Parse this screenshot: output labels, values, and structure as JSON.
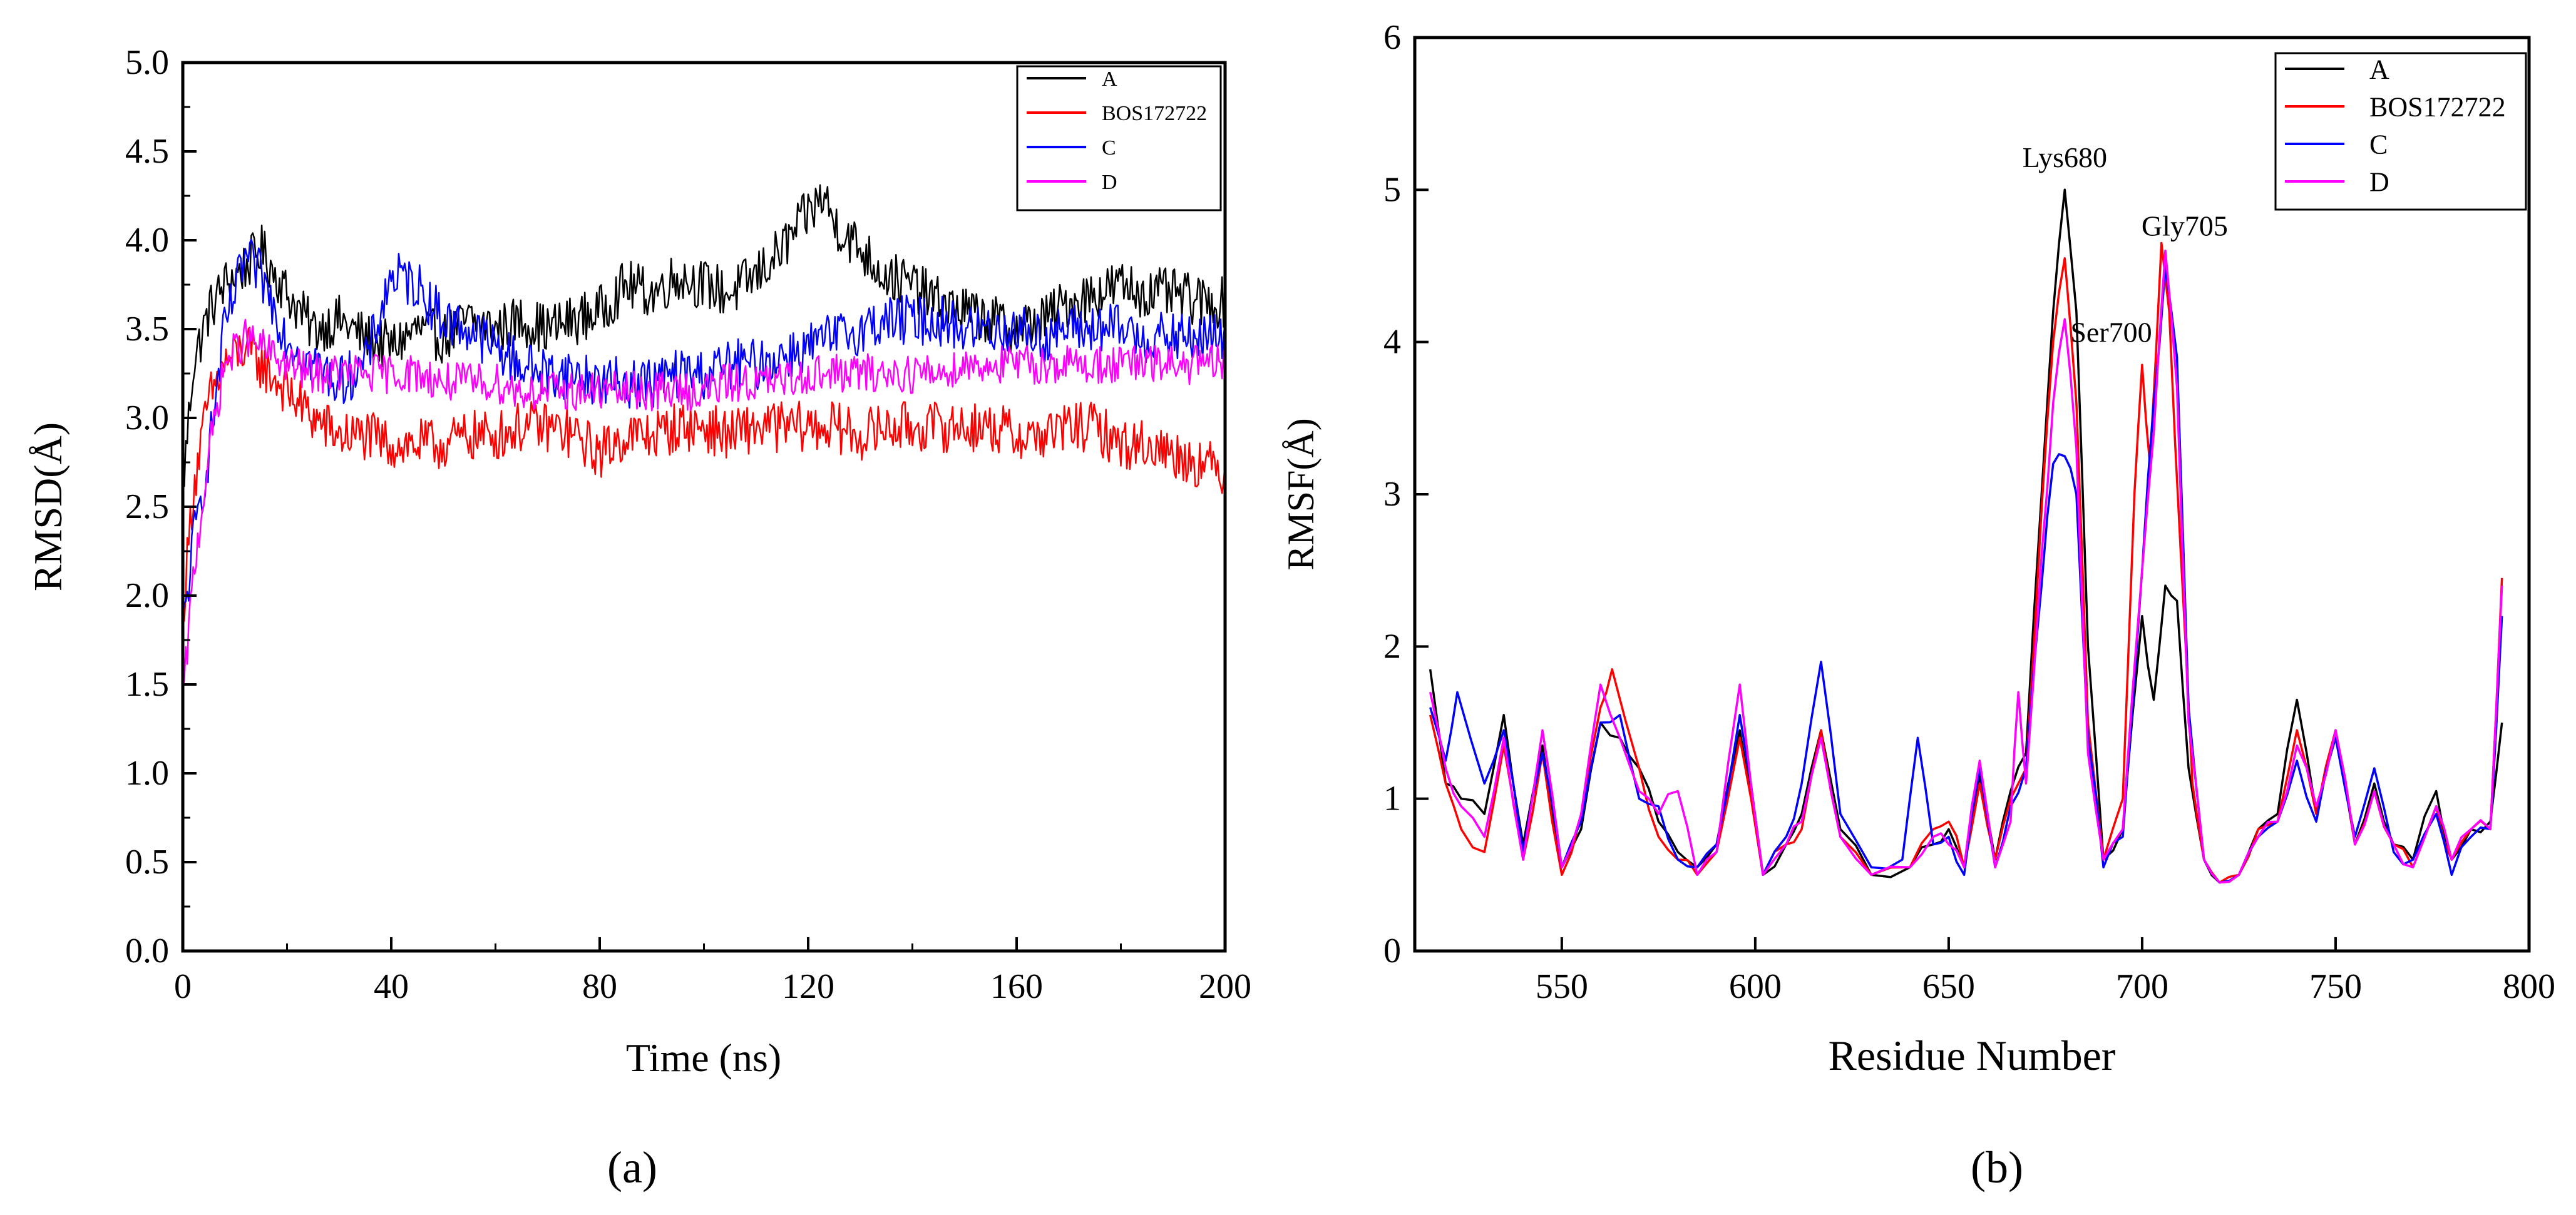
{
  "chart_data": [
    {
      "type": "line",
      "panel_label": "(a)",
      "xlabel": "Time (ns)",
      "ylabel": "RMSD(Å)",
      "xlim": [
        0,
        200
      ],
      "ylim": [
        0,
        5
      ],
      "xticks": [
        {
          "value": 0,
          "label": "0"
        },
        {
          "value": 40,
          "label": "40"
        },
        {
          "value": 80,
          "label": "80"
        },
        {
          "value": 120,
          "label": "120"
        },
        {
          "value": 160,
          "label": "160"
        },
        {
          "value": 200,
          "label": "200"
        }
      ],
      "yticks": [
        {
          "value": 0.0,
          "label": "0.0"
        },
        {
          "value": 0.5,
          "label": "0.5"
        },
        {
          "value": 1.0,
          "label": "1.0"
        },
        {
          "value": 1.5,
          "label": "1.5"
        },
        {
          "value": 2.0,
          "label": "2.0"
        },
        {
          "value": 2.5,
          "label": "2.5"
        },
        {
          "value": 3.0,
          "label": "3.0"
        },
        {
          "value": 3.5,
          "label": "3.5"
        },
        {
          "value": 4.0,
          "label": "4.0"
        },
        {
          "value": 4.5,
          "label": "4.5"
        },
        {
          "value": 5.0,
          "label": "5.0"
        }
      ],
      "legend_position": "top-right",
      "series": [
        {
          "name": "A",
          "color": "#000000",
          "noise": 0.09,
          "x": [
            0,
            2,
            5,
            8,
            12,
            15,
            20,
            25,
            30,
            35,
            40,
            45,
            50,
            55,
            60,
            65,
            70,
            75,
            80,
            85,
            90,
            95,
            100,
            105,
            110,
            115,
            120,
            123,
            125,
            130,
            135,
            140,
            145,
            150,
            155,
            160,
            165,
            170,
            175,
            180,
            185,
            190,
            195,
            200
          ],
          "y": [
            2.6,
            3.3,
            3.6,
            3.75,
            3.85,
            3.95,
            3.7,
            3.5,
            3.55,
            3.45,
            3.4,
            3.5,
            3.45,
            3.55,
            3.5,
            3.55,
            3.5,
            3.55,
            3.6,
            3.75,
            3.7,
            3.8,
            3.75,
            3.7,
            3.8,
            3.95,
            4.15,
            4.25,
            4.1,
            3.95,
            3.8,
            3.75,
            3.65,
            3.6,
            3.55,
            3.5,
            3.55,
            3.65,
            3.7,
            3.75,
            3.7,
            3.7,
            3.65,
            3.65
          ]
        },
        {
          "name": "BOS172722",
          "color": "#ff0000",
          "noise": 0.09,
          "x": [
            0,
            2,
            5,
            8,
            12,
            15,
            20,
            25,
            30,
            35,
            40,
            45,
            50,
            55,
            60,
            65,
            70,
            75,
            80,
            85,
            90,
            95,
            100,
            105,
            110,
            115,
            120,
            125,
            130,
            135,
            140,
            145,
            150,
            155,
            160,
            165,
            170,
            175,
            180,
            185,
            190,
            195,
            200
          ],
          "y": [
            1.9,
            2.6,
            3.1,
            3.3,
            3.4,
            3.3,
            3.15,
            3.0,
            2.9,
            2.9,
            2.85,
            2.85,
            2.85,
            2.9,
            2.9,
            2.95,
            2.95,
            2.9,
            2.8,
            2.9,
            2.9,
            2.95,
            2.95,
            2.9,
            2.95,
            2.95,
            2.95,
            2.95,
            2.9,
            2.95,
            2.95,
            2.95,
            2.95,
            2.95,
            2.9,
            2.9,
            2.95,
            2.95,
            2.85,
            2.85,
            2.8,
            2.75,
            2.7
          ]
        },
        {
          "name": "C",
          "color": "#0000ff",
          "noise": 0.09,
          "x": [
            0,
            2,
            5,
            8,
            12,
            15,
            20,
            25,
            30,
            35,
            40,
            45,
            50,
            55,
            60,
            65,
            70,
            75,
            80,
            85,
            90,
            95,
            100,
            105,
            110,
            115,
            120,
            125,
            130,
            135,
            140,
            145,
            150,
            155,
            160,
            165,
            170,
            175,
            180,
            185,
            190,
            195,
            200
          ],
          "y": [
            1.8,
            2.3,
            2.8,
            3.5,
            3.9,
            3.8,
            3.45,
            3.3,
            3.2,
            3.3,
            3.8,
            3.75,
            3.55,
            3.5,
            3.4,
            3.3,
            3.25,
            3.25,
            3.2,
            3.2,
            3.2,
            3.25,
            3.25,
            3.3,
            3.3,
            3.35,
            3.4,
            3.45,
            3.5,
            3.55,
            3.55,
            3.55,
            3.5,
            3.5,
            3.5,
            3.45,
            3.5,
            3.5,
            3.5,
            3.45,
            3.45,
            3.45,
            3.45
          ]
        },
        {
          "name": "D",
          "color": "#ff00ff",
          "noise": 0.07,
          "x": [
            0,
            2,
            5,
            8,
            12,
            15,
            20,
            25,
            30,
            35,
            40,
            45,
            50,
            55,
            60,
            65,
            70,
            75,
            80,
            85,
            90,
            95,
            100,
            105,
            110,
            115,
            120,
            125,
            130,
            135,
            140,
            145,
            150,
            155,
            160,
            165,
            170,
            175,
            180,
            185,
            190,
            195,
            200
          ],
          "y": [
            1.4,
            2.1,
            2.8,
            3.3,
            3.45,
            3.4,
            3.3,
            3.25,
            3.25,
            3.25,
            3.25,
            3.25,
            3.2,
            3.2,
            3.2,
            3.15,
            3.15,
            3.15,
            3.15,
            3.15,
            3.15,
            3.15,
            3.15,
            3.2,
            3.2,
            3.2,
            3.25,
            3.25,
            3.25,
            3.25,
            3.25,
            3.25,
            3.3,
            3.3,
            3.3,
            3.3,
            3.3,
            3.3,
            3.3,
            3.3,
            3.3,
            3.3,
            3.3
          ]
        }
      ]
    },
    {
      "type": "line",
      "panel_label": "(b)",
      "xlabel": "Residue Number",
      "ylabel": "RMSF(Å)",
      "xlim": [
        512,
        800
      ],
      "ylim": [
        0,
        6
      ],
      "xticks": [
        {
          "value": 550,
          "label": "550"
        },
        {
          "value": 600,
          "label": "600"
        },
        {
          "value": 650,
          "label": "650"
        },
        {
          "value": 700,
          "label": "700"
        },
        {
          "value": 750,
          "label": "750"
        },
        {
          "value": 800,
          "label": "800"
        }
      ],
      "yticks": [
        {
          "value": 0,
          "label": "0"
        },
        {
          "value": 1,
          "label": "1"
        },
        {
          "value": 2,
          "label": "2"
        },
        {
          "value": 3,
          "label": "3"
        },
        {
          "value": 4,
          "label": "4"
        },
        {
          "value": 5,
          "label": "5"
        },
        {
          "value": 6,
          "label": "6"
        }
      ],
      "legend_position": "top-right",
      "annotations": [
        {
          "text": "Lys680",
          "x": 680,
          "y": 5.15
        },
        {
          "text": "Ser700",
          "x": 692,
          "y": 4.0
        },
        {
          "text": "Gly705",
          "x": 711,
          "y": 4.7
        }
      ],
      "series": [
        {
          "name": "A",
          "color": "#000000",
          "x": [
            516,
            520,
            524,
            530,
            535,
            540,
            545,
            550,
            555,
            560,
            565,
            570,
            575,
            580,
            585,
            590,
            596,
            602,
            608,
            612,
            617,
            622,
            630,
            640,
            646,
            650,
            654,
            658,
            662,
            666,
            670,
            674,
            677,
            680,
            683,
            686,
            690,
            695,
            700,
            703,
            706,
            709,
            712,
            716,
            720,
            725,
            730,
            735,
            740,
            745,
            750,
            755,
            760,
            765,
            770,
            776,
            780,
            785,
            790,
            793
          ],
          "x_note": "",
          "y": [
            1.85,
            1.1,
            1.0,
            0.9,
            1.55,
            0.7,
            1.35,
            0.55,
            0.8,
            1.5,
            1.4,
            1.2,
            0.85,
            0.65,
            0.55,
            0.7,
            1.45,
            0.5,
            0.7,
            0.9,
            1.45,
            0.8,
            0.5,
            0.55,
            0.7,
            0.8,
            0.55,
            1.15,
            0.6,
            1.05,
            1.3,
            3.0,
            4.2,
            5.0,
            4.2,
            2.0,
            0.6,
            0.8,
            2.2,
            1.65,
            2.4,
            2.3,
            1.2,
            0.6,
            0.45,
            0.5,
            0.8,
            0.9,
            1.65,
            0.9,
            1.45,
            0.7,
            1.1,
            0.7,
            0.6,
            1.05,
            0.6,
            0.8,
            0.85,
            1.5
          ]
        },
        {
          "name": "BOS172722",
          "color": "#ff0000",
          "x": [
            516,
            520,
            524,
            530,
            535,
            540,
            545,
            550,
            555,
            560,
            563,
            570,
            575,
            580,
            585,
            590,
            596,
            602,
            608,
            612,
            617,
            622,
            630,
            640,
            646,
            650,
            654,
            658,
            662,
            666,
            670,
            674,
            677,
            680,
            683,
            686,
            690,
            695,
            698,
            700,
            702,
            705,
            707,
            710,
            713,
            716,
            720,
            725,
            730,
            735,
            740,
            745,
            750,
            755,
            760,
            765,
            770,
            776,
            780,
            785,
            790,
            793
          ],
          "y": [
            1.55,
            1.1,
            0.8,
            0.65,
            1.35,
            0.6,
            1.3,
            0.5,
            0.9,
            1.6,
            1.85,
            1.2,
            0.75,
            0.6,
            0.5,
            0.65,
            1.4,
            0.5,
            0.7,
            0.8,
            1.45,
            0.75,
            0.5,
            0.55,
            0.8,
            0.85,
            0.55,
            1.1,
            0.6,
            1.0,
            1.2,
            2.9,
            4.0,
            4.55,
            3.6,
            1.5,
            0.6,
            1.0,
            3.0,
            3.85,
            3.2,
            4.65,
            4.2,
            2.6,
            1.1,
            0.6,
            0.45,
            0.5,
            0.8,
            0.85,
            1.45,
            0.9,
            1.45,
            0.7,
            1.05,
            0.7,
            0.55,
            0.95,
            0.6,
            0.8,
            0.8,
            2.45
          ]
        },
        {
          "name": "C",
          "color": "#0000ff",
          "x": [
            516,
            520,
            523,
            530,
            535,
            540,
            545,
            550,
            555,
            560,
            565,
            570,
            575,
            580,
            585,
            590,
            596,
            602,
            608,
            612,
            617,
            622,
            630,
            638,
            642,
            646,
            650,
            654,
            658,
            662,
            666,
            670,
            674,
            677,
            680,
            683,
            686,
            690,
            695,
            700,
            703,
            706,
            709,
            712,
            716,
            720,
            725,
            730,
            735,
            740,
            745,
            750,
            755,
            760,
            765,
            770,
            776,
            780,
            785,
            790,
            793
          ],
          "y": [
            1.6,
            1.25,
            1.7,
            1.1,
            1.45,
            0.65,
            1.3,
            0.55,
            0.85,
            1.5,
            1.55,
            1.0,
            0.95,
            0.6,
            0.55,
            0.7,
            1.55,
            0.5,
            0.75,
            1.1,
            1.9,
            0.9,
            0.55,
            0.6,
            1.4,
            0.7,
            0.75,
            0.5,
            1.2,
            0.55,
            0.95,
            1.2,
            2.4,
            3.2,
            3.25,
            3.0,
            1.4,
            0.55,
            0.75,
            2.5,
            3.6,
            4.5,
            3.9,
            1.6,
            0.6,
            0.45,
            0.5,
            0.75,
            0.85,
            1.25,
            0.85,
            1.4,
            0.75,
            1.2,
            0.65,
            0.6,
            0.9,
            0.5,
            0.75,
            0.8,
            2.2
          ]
        },
        {
          "name": "D",
          "color": "#ff00ff",
          "x": [
            516,
            520,
            524,
            530,
            535,
            540,
            545,
            550,
            555,
            560,
            565,
            570,
            575,
            580,
            585,
            590,
            596,
            602,
            608,
            612,
            617,
            622,
            630,
            640,
            646,
            650,
            654,
            658,
            662,
            666,
            668,
            670,
            674,
            677,
            680,
            683,
            686,
            690,
            695,
            700,
            703,
            706,
            709,
            712,
            716,
            720,
            725,
            730,
            735,
            740,
            745,
            750,
            755,
            760,
            765,
            770,
            776,
            780,
            785,
            790,
            793
          ],
          "y": [
            1.7,
            1.2,
            0.95,
            0.75,
            1.4,
            0.6,
            1.45,
            0.55,
            0.9,
            1.75,
            1.4,
            1.05,
            0.9,
            1.05,
            0.5,
            0.65,
            1.75,
            0.5,
            0.7,
            0.85,
            1.4,
            0.75,
            0.5,
            0.55,
            0.75,
            0.7,
            0.55,
            1.25,
            0.55,
            0.85,
            1.7,
            1.1,
            2.6,
            3.6,
            4.15,
            3.3,
            1.3,
            0.6,
            0.8,
            2.5,
            3.4,
            4.6,
            3.7,
            1.5,
            0.6,
            0.45,
            0.5,
            0.75,
            0.85,
            1.35,
            0.95,
            1.45,
            0.7,
            1.05,
            0.7,
            0.55,
            0.95,
            0.6,
            0.8,
            0.8,
            2.4
          ]
        }
      ]
    }
  ]
}
